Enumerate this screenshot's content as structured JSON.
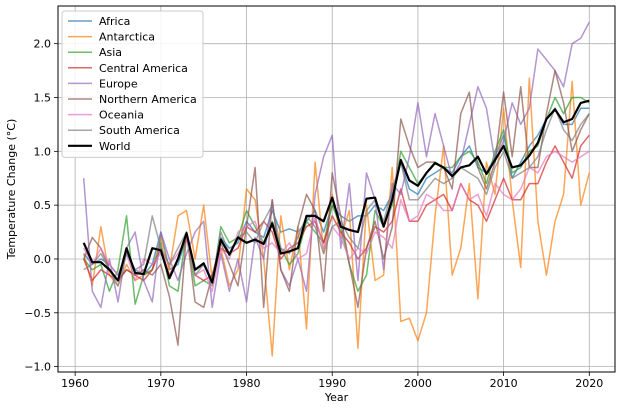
{
  "chart_data": {
    "type": "line",
    "title": "",
    "xlabel": "Year",
    "ylabel": "Temperature Change (°C)",
    "xlim": [
      1958,
      2023
    ],
    "ylim": [
      -1.05,
      2.35
    ],
    "xticks": [
      1960,
      1970,
      1980,
      1990,
      2000,
      2010,
      2020
    ],
    "yticks": [
      -1.0,
      -0.5,
      0.0,
      0.5,
      1.0,
      1.5,
      2.0
    ],
    "grid": true,
    "legend_position": "upper-left",
    "x": [
      1961,
      1962,
      1963,
      1964,
      1965,
      1966,
      1967,
      1968,
      1969,
      1970,
      1971,
      1972,
      1973,
      1974,
      1975,
      1976,
      1977,
      1978,
      1979,
      1980,
      1981,
      1982,
      1983,
      1984,
      1985,
      1986,
      1987,
      1988,
      1989,
      1990,
      1991,
      1992,
      1993,
      1994,
      1995,
      1996,
      1997,
      1998,
      1999,
      2000,
      2001,
      2002,
      2003,
      2004,
      2005,
      2006,
      2007,
      2008,
      2009,
      2010,
      2011,
      2012,
      2013,
      2014,
      2015,
      2016,
      2017,
      2018,
      2019,
      2020
    ],
    "series": [
      {
        "name": "Africa",
        "color": "#1f77b4",
        "values": [
          0.05,
          -0.05,
          0.0,
          -0.05,
          -0.15,
          0.05,
          -0.1,
          -0.15,
          -0.05,
          0.25,
          -0.1,
          -0.05,
          0.2,
          -0.1,
          -0.05,
          -0.2,
          0.2,
          0.1,
          0.15,
          0.35,
          0.25,
          0.2,
          0.45,
          0.25,
          0.28,
          0.25,
          0.35,
          0.45,
          0.25,
          0.5,
          0.4,
          0.35,
          0.4,
          0.4,
          0.5,
          0.45,
          0.6,
          0.9,
          0.65,
          0.6,
          0.75,
          0.8,
          0.85,
          0.8,
          0.95,
          1.05,
          0.85,
          0.8,
          0.95,
          1.15,
          0.75,
          0.9,
          1.05,
          1.15,
          1.3,
          1.4,
          1.25,
          1.25,
          1.4,
          1.4
        ]
      },
      {
        "name": "Antarctica",
        "color": "#ff7f0e",
        "values": [
          0.05,
          -0.25,
          0.3,
          -0.15,
          -0.25,
          -0.05,
          -0.2,
          -0.15,
          -0.1,
          0.2,
          -0.1,
          0.4,
          0.45,
          0.0,
          0.5,
          -0.2,
          0.1,
          -0.25,
          -0.1,
          0.65,
          0.55,
          0.0,
          -0.9,
          0.4,
          -0.1,
          0.3,
          -0.65,
          0.9,
          0.05,
          0.6,
          0.2,
          0.45,
          -0.83,
          0.5,
          -0.2,
          -0.15,
          0.85,
          -0.58,
          -0.55,
          -0.76,
          -0.5,
          0.4,
          1.05,
          -0.15,
          0.1,
          0.7,
          -0.37,
          0.9,
          0.6,
          1.4,
          0.55,
          -0.08,
          1.68,
          0.35,
          -0.15,
          0.35,
          0.6,
          1.65,
          0.5,
          0.8
        ]
      },
      {
        "name": "Asia",
        "color": "#2ca02c",
        "values": [
          0.0,
          -0.1,
          -0.05,
          -0.3,
          -0.1,
          0.4,
          -0.42,
          -0.15,
          -0.1,
          0.15,
          -0.25,
          -0.3,
          0.25,
          -0.25,
          -0.2,
          -0.25,
          0.3,
          0.15,
          0.2,
          0.45,
          0.3,
          0.15,
          0.35,
          0.1,
          -0.05,
          0.05,
          0.35,
          0.25,
          0.15,
          0.5,
          0.3,
          -0.05,
          -0.3,
          -0.15,
          0.45,
          0.3,
          0.5,
          1.0,
          0.85,
          0.7,
          0.8,
          0.9,
          0.85,
          0.85,
          0.95,
          1.0,
          0.9,
          0.7,
          1.0,
          1.2,
          0.8,
          0.85,
          1.0,
          1.05,
          1.3,
          1.5,
          1.35,
          1.5,
          1.5,
          1.45
        ]
      },
      {
        "name": "Central America",
        "color": "#d62728",
        "values": [
          0.0,
          -0.2,
          -0.1,
          -0.15,
          -0.2,
          -0.1,
          -0.15,
          -0.2,
          -0.1,
          0.1,
          -0.15,
          0.0,
          0.2,
          -0.15,
          -0.2,
          -0.15,
          0.1,
          0.05,
          0.1,
          0.3,
          0.25,
          0.35,
          0.25,
          0.0,
          0.1,
          0.15,
          0.3,
          0.35,
          0.15,
          0.4,
          0.25,
          0.15,
          0.0,
          0.1,
          0.3,
          0.25,
          0.35,
          0.65,
          0.35,
          0.35,
          0.5,
          0.55,
          0.6,
          0.45,
          0.7,
          0.55,
          0.5,
          0.35,
          0.55,
          0.75,
          0.55,
          0.55,
          0.7,
          0.7,
          0.9,
          1.05,
          0.9,
          0.75,
          1.05,
          1.15
        ]
      },
      {
        "name": "Europe",
        "color": "#9467bd",
        "values": [
          0.75,
          -0.3,
          -0.45,
          0.0,
          -0.4,
          0.1,
          0.25,
          -0.2,
          -0.4,
          0.25,
          0.0,
          -0.2,
          0.05,
          0.25,
          0.35,
          -0.45,
          0.05,
          -0.3,
          0.0,
          -0.4,
          0.2,
          0.0,
          0.55,
          -0.1,
          -0.25,
          0.0,
          -0.3,
          0.6,
          0.95,
          1.15,
          0.1,
          0.7,
          -0.2,
          0.8,
          0.55,
          -0.1,
          0.7,
          0.6,
          0.95,
          1.45,
          0.95,
          1.35,
          1.05,
          0.75,
          0.9,
          1.25,
          1.6,
          1.4,
          0.9,
          1.1,
          1.45,
          1.25,
          1.4,
          1.95,
          1.85,
          1.75,
          1.6,
          2.0,
          2.05,
          2.2
        ]
      },
      {
        "name": "Northern America",
        "color": "#8c564b",
        "values": [
          0.0,
          0.2,
          0.1,
          -0.1,
          -0.2,
          -0.1,
          -0.15,
          -0.1,
          -0.15,
          -0.05,
          -0.35,
          -0.8,
          0.25,
          -0.4,
          -0.45,
          -0.15,
          0.15,
          -0.05,
          -0.25,
          0.3,
          0.85,
          -0.45,
          0.55,
          -0.1,
          -0.3,
          0.3,
          0.6,
          0.45,
          -0.3,
          0.8,
          0.4,
          -0.05,
          -0.45,
          0.1,
          0.35,
          0.0,
          0.3,
          1.3,
          1.05,
          0.85,
          0.9,
          0.9,
          0.85,
          0.65,
          1.35,
          1.55,
          0.85,
          0.65,
          0.9,
          1.55,
          0.95,
          1.6,
          0.85,
          0.85,
          1.35,
          1.75,
          1.45,
          1.0,
          1.2,
          1.35
        ]
      },
      {
        "name": "Oceania",
        "color": "#e377c2",
        "values": [
          0.1,
          -0.05,
          0.1,
          -0.05,
          -0.15,
          0.05,
          -0.2,
          0.0,
          -0.05,
          0.05,
          -0.05,
          0.05,
          0.2,
          -0.15,
          -0.1,
          -0.3,
          0.1,
          0.0,
          0.25,
          0.3,
          0.35,
          0.1,
          0.15,
          0.05,
          0.15,
          0.0,
          0.05,
          0.4,
          0.1,
          0.3,
          0.2,
          0.0,
          0.1,
          0.05,
          0.25,
          0.2,
          0.1,
          0.55,
          0.35,
          0.4,
          0.6,
          0.55,
          0.45,
          0.45,
          0.7,
          0.55,
          0.6,
          0.4,
          0.7,
          0.6,
          0.55,
          0.65,
          0.85,
          0.8,
          0.95,
          1.0,
          0.95,
          0.9,
          0.95,
          1.0
        ]
      },
      {
        "name": "South America",
        "color": "#7f7f7f",
        "values": [
          -0.1,
          -0.05,
          0.05,
          -0.1,
          -0.25,
          0.05,
          -0.1,
          -0.05,
          0.4,
          0.1,
          -0.05,
          0.1,
          0.25,
          -0.15,
          -0.05,
          -0.2,
          0.25,
          0.05,
          0.2,
          0.25,
          0.15,
          0.35,
          0.5,
          0.1,
          0.05,
          0.2,
          0.4,
          0.3,
          0.05,
          0.3,
          0.35,
          0.2,
          0.1,
          0.45,
          0.55,
          0.35,
          0.65,
          0.9,
          0.55,
          0.55,
          0.65,
          0.75,
          0.7,
          0.75,
          0.85,
          0.8,
          0.75,
          0.6,
          0.85,
          1.0,
          0.75,
          0.8,
          0.85,
          0.95,
          1.2,
          1.4,
          1.2,
          1.1,
          1.25,
          1.35
        ]
      },
      {
        "name": "World",
        "color": "#000000",
        "values": [
          0.15,
          -0.03,
          -0.03,
          -0.1,
          -0.2,
          0.1,
          -0.13,
          -0.14,
          0.1,
          0.08,
          -0.18,
          0.0,
          0.24,
          -0.1,
          -0.04,
          -0.22,
          0.18,
          0.04,
          0.2,
          0.15,
          0.18,
          0.14,
          0.33,
          0.05,
          0.07,
          0.1,
          0.4,
          0.4,
          0.35,
          0.57,
          0.3,
          0.27,
          0.25,
          0.56,
          0.57,
          0.3,
          0.55,
          0.92,
          0.73,
          0.68,
          0.8,
          0.89,
          0.85,
          0.77,
          0.85,
          0.87,
          0.95,
          0.79,
          0.92,
          1.05,
          0.85,
          0.87,
          0.96,
          1.08,
          1.3,
          1.39,
          1.27,
          1.3,
          1.45,
          1.47
        ]
      }
    ]
  }
}
